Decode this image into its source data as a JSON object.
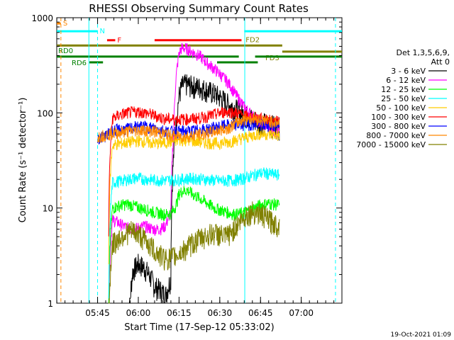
{
  "chart_data": {
    "type": "line",
    "title": "RHESSI Observing Summary Count Rates",
    "xlabel": "Start Time (17-Sep-12 05:33:02)",
    "ylabel": "Count Rate (s⁻¹ detector⁻¹)",
    "yscale": "log",
    "ylim": [
      1,
      1000
    ],
    "xlim_minutes": [
      -3.03,
      101.97
    ],
    "x_ticks": [
      {
        "label": "05:45",
        "t": 12
      },
      {
        "label": "06:00",
        "t": 27
      },
      {
        "label": "06:15",
        "t": 42
      },
      {
        "label": "06:30",
        "t": 57
      },
      {
        "label": "06:45",
        "t": 72
      },
      {
        "label": "07:00",
        "t": 87
      }
    ],
    "y_ticks": [
      {
        "label": "1",
        "v": 1
      },
      {
        "label": "10",
        "v": 10
      },
      {
        "label": "100",
        "v": 100
      },
      {
        "label": "1000",
        "v": 1000
      }
    ],
    "legend_header": [
      "Det 1,3,5,6,9,",
      "Att 0"
    ],
    "series": [
      {
        "name": "3 - 6 keV",
        "color": "#000000",
        "t": [
          14,
          16,
          17.5,
          19,
          21,
          23,
          25,
          27,
          29,
          31,
          33,
          35,
          37,
          39,
          40,
          41,
          42,
          43,
          44,
          45,
          46,
          48,
          50,
          52,
          55,
          58,
          60,
          62,
          64,
          66,
          68,
          70,
          72,
          74,
          76,
          78,
          79
        ],
        "values": [
          0,
          0,
          0,
          0,
          0,
          0,
          2.2,
          2.6,
          2.4,
          2.0,
          1.5,
          1.4,
          1.2,
          1.8,
          35,
          80,
          150,
          190,
          200,
          200,
          195,
          190,
          185,
          175,
          160,
          140,
          125,
          115,
          105,
          95,
          90,
          85,
          80,
          78,
          75,
          72,
          70
        ]
      },
      {
        "name": "6 - 12 keV",
        "color": "#ff00ff",
        "t": [
          12,
          14,
          16,
          17.5,
          19,
          21,
          23,
          25,
          27,
          29,
          31,
          33,
          35,
          37,
          39,
          40,
          41,
          42,
          43,
          44,
          45,
          46,
          48,
          50,
          52,
          55,
          58,
          60,
          62,
          64,
          66,
          68,
          70,
          72,
          74,
          76,
          78,
          79
        ],
        "values": [
          0,
          0,
          0,
          7.5,
          7.2,
          6.6,
          6.2,
          6.0,
          6.2,
          6.5,
          6.2,
          6.0,
          6.0,
          6.5,
          9,
          60,
          250,
          420,
          480,
          480,
          470,
          450,
          420,
          390,
          340,
          290,
          240,
          210,
          170,
          140,
          115,
          100,
          88,
          78,
          72,
          68,
          64,
          62
        ]
      },
      {
        "name": "12 - 25 keV",
        "color": "#00ff00",
        "t": [
          12,
          14,
          16,
          17.5,
          19,
          21,
          23,
          25,
          27,
          29,
          31,
          33,
          35,
          37,
          39,
          40,
          41,
          42,
          43,
          45,
          47,
          49,
          51,
          53,
          55,
          57,
          59,
          61,
          63,
          65,
          67,
          69,
          71,
          73,
          75,
          77,
          79
        ],
        "values": [
          0,
          0,
          0,
          10.0,
          10.4,
          10.8,
          11.0,
          10.6,
          10.2,
          9.8,
          9.4,
          9.0,
          8.8,
          8.6,
          8.8,
          9.5,
          11,
          14,
          15,
          15.5,
          14,
          13,
          12,
          11,
          10,
          9.6,
          9.2,
          8.8,
          8.6,
          8.8,
          9.2,
          9.8,
          10.5,
          11,
          11.2,
          11,
          10.8
        ]
      },
      {
        "name": "25 - 50 keV",
        "color": "#00ffff",
        "t": [
          12,
          14,
          16,
          17.5,
          19,
          21,
          23,
          25,
          27,
          29,
          31,
          33,
          35,
          37,
          39,
          41,
          43,
          45,
          47,
          49,
          51,
          53,
          55,
          57,
          59,
          61,
          63,
          65,
          67,
          69,
          71,
          73,
          75,
          77,
          79
        ],
        "values": [
          0,
          0,
          0,
          18.6,
          18.9,
          19.4,
          20.0,
          20.5,
          20.6,
          20.2,
          20.0,
          19.8,
          19.6,
          19.6,
          19.8,
          19.9,
          20.1,
          20.4,
          20.6,
          20.4,
          20.1,
          19.8,
          19.6,
          19.4,
          19.4,
          19.6,
          19.8,
          20.2,
          21.0,
          22.0,
          23.0,
          23.5,
          23.0,
          22.6,
          22.2
        ]
      },
      {
        "name": "50 - 100 keV",
        "color": "#ffcc00",
        "t": [
          12,
          14,
          16,
          17.5,
          19,
          21,
          23,
          25,
          27,
          29,
          31,
          33,
          35,
          37,
          39,
          41,
          43,
          45,
          47,
          49,
          51,
          53,
          55,
          57,
          59,
          61,
          63,
          65,
          67,
          69,
          71,
          73,
          75,
          77,
          79
        ],
        "values": [
          0,
          0,
          0,
          46,
          47,
          48,
          49,
          50,
          51,
          50,
          49,
          48,
          48,
          49,
          50,
          51,
          52,
          52,
          51,
          50,
          49,
          48.5,
          48,
          48,
          49,
          50,
          52,
          54,
          56,
          58,
          60,
          60,
          60,
          59,
          58
        ]
      },
      {
        "name": "100 - 300 keV",
        "color": "#ff0000",
        "t": [
          12,
          14,
          16,
          17.5,
          19,
          21,
          23,
          25,
          27,
          29,
          31,
          33,
          35,
          37,
          39,
          41,
          43,
          45,
          47,
          49,
          51,
          53,
          55,
          57,
          59,
          61,
          63,
          65,
          67,
          69,
          71,
          73,
          75,
          77,
          79
        ],
        "values": [
          0,
          0,
          0,
          88,
          92,
          97,
          100,
          102,
          103,
          101,
          98,
          94,
          90,
          87,
          86,
          86,
          86,
          86,
          87,
          88,
          90,
          93,
          96,
          100,
          103,
          103,
          100,
          96,
          92,
          90,
          88,
          86,
          84,
          82,
          80
        ]
      },
      {
        "name": "300 - 800 keV",
        "color": "#0000ff",
        "t": [
          12,
          14,
          16,
          17.5,
          19,
          21,
          23,
          25,
          27,
          29,
          31,
          33,
          35,
          37,
          39,
          41,
          43,
          45,
          47,
          49,
          51,
          53,
          55,
          57,
          59,
          61,
          63,
          65,
          67,
          69,
          71,
          73,
          75,
          77,
          79
        ],
        "values": [
          54,
          56,
          60,
          65,
          66,
          67,
          68,
          70,
          72,
          72,
          71,
          69,
          67,
          65,
          64,
          64,
          64,
          64,
          65,
          66,
          67,
          68,
          70,
          72,
          74,
          75,
          75,
          75,
          76,
          76,
          76,
          75,
          74,
          73,
          72
        ]
      },
      {
        "name": "800 - 7000 keV",
        "color": "#ff8800",
        "t": [
          12,
          14,
          16,
          17.5,
          19,
          21,
          23,
          25,
          27,
          29,
          31,
          33,
          35,
          37,
          39,
          41,
          43,
          45,
          47,
          49,
          51,
          53,
          55,
          57,
          59,
          61,
          63,
          65,
          67,
          69,
          71,
          73,
          75,
          77,
          79
        ],
        "values": [
          56,
          58,
          60,
          61,
          62,
          63,
          64,
          65,
          66,
          66,
          65,
          64,
          62,
          60,
          58,
          57,
          57,
          57,
          58,
          59,
          60,
          62,
          64,
          66,
          68,
          72,
          78,
          84,
          88,
          88,
          86,
          84,
          82,
          80,
          78
        ]
      },
      {
        "name": "7000 - 15000 keV",
        "color": "#808000",
        "t": [
          12,
          14,
          16,
          17.5,
          19,
          21,
          23,
          25,
          27,
          29,
          31,
          33,
          35,
          37,
          39,
          41,
          43,
          45,
          47,
          49,
          51,
          53,
          55,
          57,
          59,
          61,
          63,
          65,
          67,
          69,
          71,
          73,
          75,
          77,
          79
        ],
        "values": [
          0,
          0,
          0,
          4.2,
          4.6,
          5.2,
          5.6,
          5.8,
          5.4,
          4.8,
          4.2,
          3.6,
          3.2,
          3.0,
          3.0,
          3.2,
          3.5,
          3.9,
          4.3,
          4.7,
          5.0,
          5.3,
          5.5,
          5.3,
          5.0,
          5.5,
          6.5,
          7.5,
          8.6,
          9.2,
          9.0,
          8.4,
          7.6,
          7.0,
          6.5
        ]
      }
    ],
    "flags": [
      {
        "label": "S",
        "color": "#ff8800",
        "value": 870,
        "segments": [
          [
            -3,
            -1.5
          ]
        ]
      },
      {
        "label": "N",
        "color": "#00ffff",
        "value": 720,
        "segments": [
          [
            -3,
            12
          ]
        ]
      },
      {
        "label": "F",
        "color": "#ff0000",
        "value": 580,
        "segments": [
          [
            15.5,
            18.5
          ]
        ]
      },
      {
        "label": "",
        "color": "#ff0000",
        "value": 580,
        "segments": [
          [
            33,
            65
          ]
        ]
      },
      {
        "label": "",
        "color": "#00ffff",
        "value": 720,
        "segments": [
          [
            66,
            102
          ]
        ]
      },
      {
        "label": "",
        "color": "#808000",
        "value": 510,
        "segments": [
          [
            -3,
            66
          ]
        ]
      },
      {
        "label": "FD2",
        "color": "#808000",
        "value": 510,
        "segments": [
          [
            66,
            80
          ]
        ]
      },
      {
        "label": "FD3",
        "color": "#808000",
        "value": 440,
        "segments": [
          [
            80,
            102
          ]
        ]
      },
      {
        "label": "RD0",
        "color": "#008000",
        "value": 390,
        "segments": [
          [
            -3,
            64
          ],
          [
            70,
            102
          ]
        ]
      },
      {
        "label": "RD6",
        "color": "#008000",
        "value": 340,
        "segments": [
          [
            9,
            14
          ],
          [
            56,
            71
          ]
        ]
      }
    ],
    "vertical_lines": [
      {
        "t": -1.5,
        "color": "#ff8800",
        "dashed": true
      },
      {
        "t": 12,
        "color": "#00ffff",
        "dashed": true
      },
      {
        "t": 8.8,
        "color": "#00ffff",
        "dashed": false
      },
      {
        "t": 66.2,
        "color": "#00ffff",
        "dashed": false
      },
      {
        "t": 99.6,
        "color": "#00ffff",
        "dashed": true
      }
    ],
    "timestamp": "19-Oct-2021 01:09"
  }
}
